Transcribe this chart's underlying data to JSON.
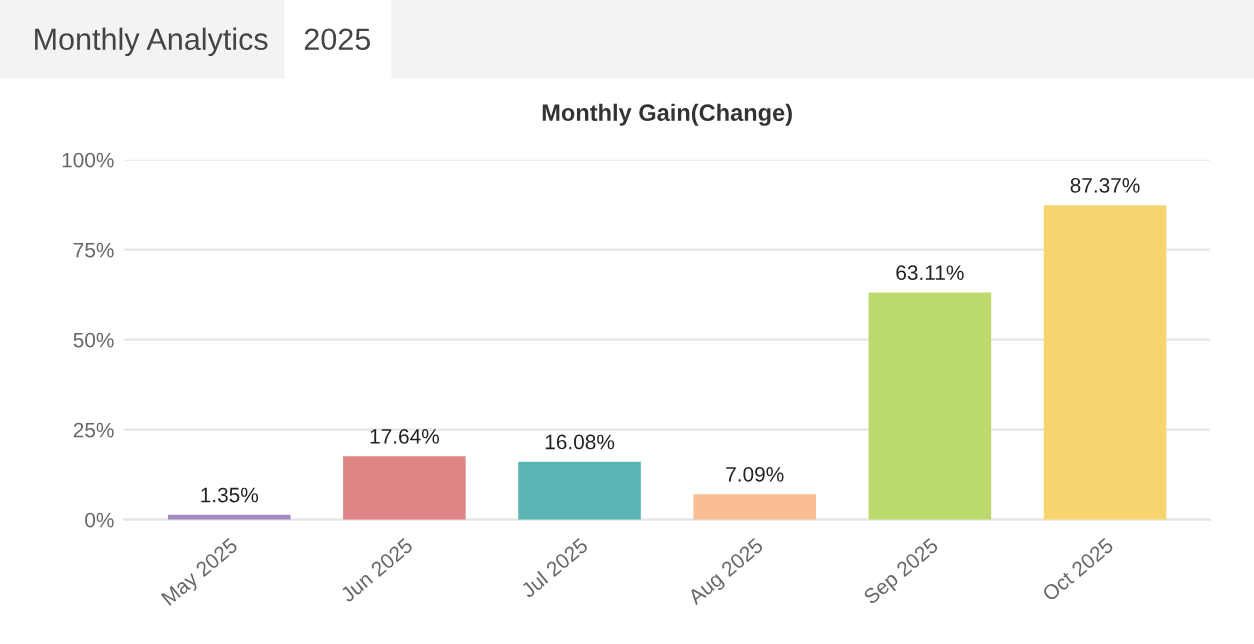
{
  "chart_data": {
    "type": "bar",
    "title": "Monthly Gain(Change)",
    "annotations": [
      "Monthly Analytics",
      "2025"
    ],
    "categories": [
      "May 2025",
      "Jun 2025",
      "Jul 2025",
      "Aug 2025",
      "Sep 2025",
      "Oct 2025"
    ],
    "values": [
      1.35,
      17.64,
      16.08,
      7.09,
      63.11,
      87.37
    ],
    "value_labels": [
      "1.35%",
      "17.64%",
      "16.08%",
      "7.09%",
      "63.11%",
      "87.37%"
    ],
    "colors": [
      "#a58bc0",
      "#e08585",
      "#5bb5b4",
      "#fbbd93",
      "#bcd96e",
      "#f6d46e"
    ],
    "ylim": [
      0,
      100
    ],
    "yticks": [
      {
        "value": 0,
        "label": "0%"
      },
      {
        "value": 25,
        "label": "25%"
      },
      {
        "value": 50,
        "label": "50%"
      },
      {
        "value": 75,
        "label": "75%"
      },
      {
        "value": 100,
        "label": "100%"
      }
    ],
    "grid": "y",
    "legend": false
  }
}
